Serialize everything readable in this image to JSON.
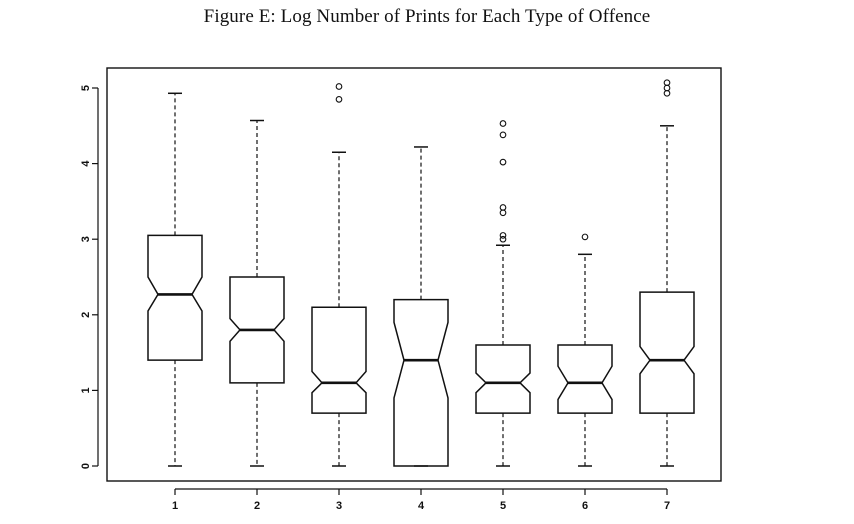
{
  "chart_data": {
    "type": "boxplot",
    "notched": true,
    "title": "Figure E: Log Number of Prints for Each Type of Offence",
    "xlabel": "",
    "ylabel": "",
    "categories": [
      "1",
      "2",
      "3",
      "4",
      "5",
      "6",
      "7"
    ],
    "ylim": [
      0,
      5.2
    ],
    "yticks": [
      "0",
      "1",
      "2",
      "3",
      "4",
      "5"
    ],
    "grid": false,
    "boxes": [
      {
        "category": "1",
        "whisker_low": 0.0,
        "q1": 1.4,
        "median": 2.27,
        "q3": 3.05,
        "whisker_high": 4.93,
        "notch_low": 2.05,
        "notch_high": 2.5,
        "outliers": []
      },
      {
        "category": "2",
        "whisker_low": 0.0,
        "q1": 1.1,
        "median": 1.8,
        "q3": 2.5,
        "whisker_high": 4.57,
        "notch_low": 1.65,
        "notch_high": 1.95,
        "outliers": []
      },
      {
        "category": "3",
        "whisker_low": 0.0,
        "q1": 0.7,
        "median": 1.1,
        "q3": 2.1,
        "whisker_high": 4.15,
        "notch_low": 0.97,
        "notch_high": 1.25,
        "outliers": [
          4.85,
          5.02
        ]
      },
      {
        "category": "4",
        "whisker_low": 0.0,
        "q1": 0.0,
        "median": 1.4,
        "q3": 2.2,
        "whisker_high": 4.22,
        "notch_low": 0.9,
        "notch_high": 1.9,
        "outliers": []
      },
      {
        "category": "5",
        "whisker_low": 0.0,
        "q1": 0.7,
        "median": 1.1,
        "q3": 1.6,
        "whisker_high": 2.92,
        "notch_low": 0.97,
        "notch_high": 1.23,
        "outliers": [
          3.0,
          3.05,
          3.35,
          3.42,
          4.02,
          4.38,
          4.53
        ]
      },
      {
        "category": "6",
        "whisker_low": 0.0,
        "q1": 0.7,
        "median": 1.1,
        "q3": 1.6,
        "whisker_high": 2.8,
        "notch_low": 0.88,
        "notch_high": 1.32,
        "outliers": [
          3.03
        ]
      },
      {
        "category": "7",
        "whisker_low": 0.0,
        "q1": 0.7,
        "median": 1.4,
        "q3": 2.3,
        "whisker_high": 4.5,
        "notch_low": 1.22,
        "notch_high": 1.58,
        "outliers": [
          4.93,
          5.0,
          5.07
        ]
      }
    ]
  }
}
